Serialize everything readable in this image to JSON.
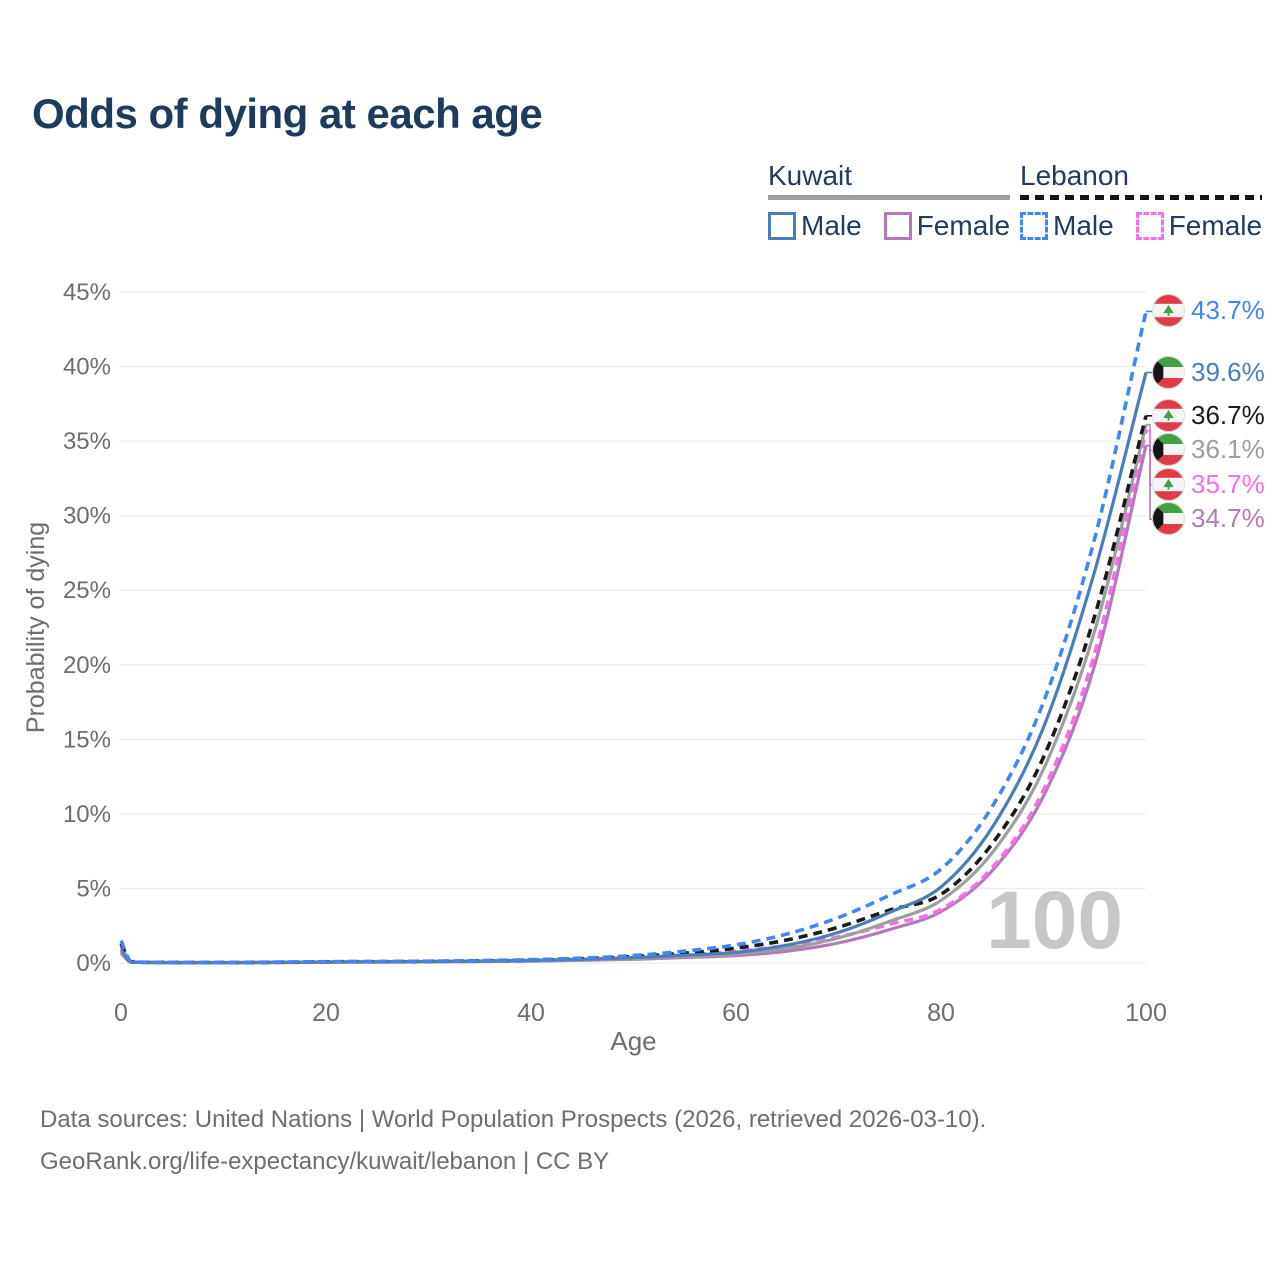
{
  "title": "Odds of dying at each age",
  "legend": {
    "groups": [
      {
        "id": "kuwait",
        "label": "Kuwait",
        "line_style": "solid",
        "line_color": "#9e9e9e",
        "items": [
          {
            "label": "Male",
            "color": "#4a7eba",
            "dashed": false
          },
          {
            "label": "Female",
            "color": "#b27ab8",
            "dashed": false
          }
        ]
      },
      {
        "id": "lebanon",
        "label": "Lebanon",
        "line_style": "dashed",
        "line_color": "#141414",
        "items": [
          {
            "label": "Male",
            "color": "#4285f4",
            "dashed": true
          },
          {
            "label": "Female",
            "color": "#fa6ee3",
            "dashed": true
          }
        ]
      }
    ]
  },
  "chart_data": {
    "type": "line",
    "title": "Odds of dying at each age",
    "xlabel": "Age",
    "ylabel": "Probability of dying",
    "xlim": [
      0,
      100
    ],
    "ylim": [
      0,
      45
    ],
    "xticks": [
      0,
      20,
      40,
      60,
      80,
      100
    ],
    "ytick_step": 5,
    "ytick_suffix": "%",
    "grid": true,
    "legend_position": "top-right",
    "annotation": "100",
    "x": [
      0,
      1,
      3,
      5,
      10,
      15,
      20,
      25,
      30,
      35,
      40,
      45,
      50,
      55,
      60,
      65,
      70,
      75,
      80,
      85,
      90,
      95,
      100
    ],
    "series": [
      {
        "name": "Lebanon Male",
        "country": "Lebanon",
        "flag": "lebanon",
        "color": "#4285f4",
        "dash": true,
        "end_label": "43.7%",
        "values": [
          1.5,
          0.1,
          0.05,
          0.04,
          0.03,
          0.06,
          0.09,
          0.1,
          0.12,
          0.16,
          0.22,
          0.33,
          0.5,
          0.8,
          1.22,
          1.95,
          3.05,
          4.55,
          6.3,
          10.5,
          17.5,
          28.5,
          43.7
        ]
      },
      {
        "name": "Kuwait Male",
        "country": "Kuwait",
        "flag": "kuwait",
        "color": "#4a7eba",
        "dash": false,
        "end_label": "39.6%",
        "values": [
          0.9,
          0.07,
          0.04,
          0.03,
          0.03,
          0.05,
          0.07,
          0.08,
          0.1,
          0.13,
          0.18,
          0.25,
          0.36,
          0.52,
          0.72,
          1.2,
          2.05,
          3.4,
          5.1,
          9.1,
          15.8,
          26.3,
          39.6
        ]
      },
      {
        "name": "Lebanon Total",
        "country": "Lebanon",
        "flag": "lebanon",
        "color": "#1a1a1a",
        "dash": true,
        "end_label": "36.7%",
        "values": [
          1.3,
          0.09,
          0.045,
          0.035,
          0.03,
          0.05,
          0.08,
          0.09,
          0.11,
          0.14,
          0.19,
          0.28,
          0.43,
          0.66,
          1.0,
          1.55,
          2.4,
          3.55,
          4.6,
          8.0,
          13.8,
          23.3,
          36.7
        ]
      },
      {
        "name": "Kuwait Total",
        "country": "Kuwait",
        "flag": "kuwait",
        "color": "#9e9e9e",
        "dash": false,
        "end_label": "36.1%",
        "values": [
          0.75,
          0.06,
          0.035,
          0.03,
          0.025,
          0.04,
          0.06,
          0.07,
          0.09,
          0.11,
          0.15,
          0.21,
          0.3,
          0.44,
          0.6,
          0.98,
          1.68,
          2.8,
          4.2,
          7.4,
          13.0,
          22.3,
          36.1
        ]
      },
      {
        "name": "Lebanon Female",
        "country": "Lebanon",
        "flag": "lebanon",
        "color": "#fa6ee3",
        "dash": true,
        "end_label": "35.7%",
        "values": [
          1.1,
          0.08,
          0.04,
          0.03,
          0.025,
          0.04,
          0.06,
          0.07,
          0.09,
          0.12,
          0.16,
          0.23,
          0.35,
          0.54,
          0.78,
          1.18,
          1.75,
          2.6,
          3.6,
          6.4,
          11.6,
          20.8,
          35.7
        ]
      },
      {
        "name": "Kuwait Female",
        "country": "Kuwait",
        "flag": "kuwait",
        "color": "#b27ab8",
        "dash": false,
        "end_label": "34.7%",
        "values": [
          0.65,
          0.05,
          0.03,
          0.025,
          0.02,
          0.03,
          0.05,
          0.06,
          0.08,
          0.1,
          0.13,
          0.18,
          0.25,
          0.37,
          0.5,
          0.8,
          1.35,
          2.25,
          3.45,
          6.2,
          11.2,
          20.0,
          34.7
        ]
      }
    ]
  },
  "footer": {
    "line1": "Data sources: United Nations | World Population Prospects (2026, retrieved 2026-03-10).",
    "line2": "GeoRank.org/life-expectancy/kuwait/lebanon | CC BY"
  },
  "colors": {
    "title": "#1e3a5c",
    "axis_text": "#6e6e6e",
    "gridline": "#ececec",
    "watermark": "#c7c7c7",
    "legend_text": "#223c61"
  }
}
